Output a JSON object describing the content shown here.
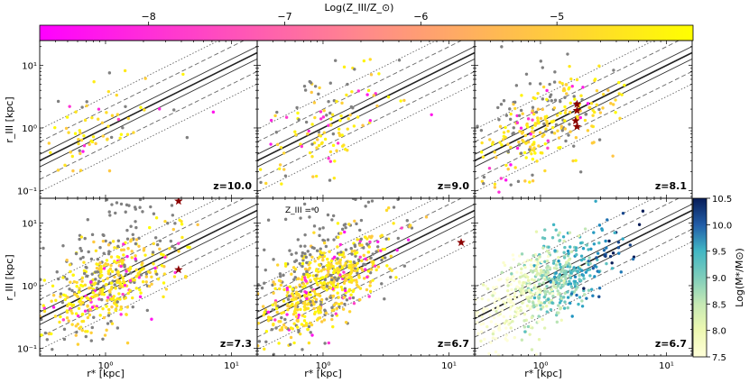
{
  "colorbar_top": {
    "label": "Log(Z_III/Z_⊙)",
    "label_main": "Log(",
    "label_z": "Z",
    "label_sub": "III",
    "label_mid": "/",
    "label_sun": "⊙",
    "label_end": ")",
    "min": -8.8,
    "max": -4.0,
    "ticks": [
      -8,
      -7,
      -6,
      -5
    ],
    "tick_labels": [
      "−8",
      "−7",
      "−6",
      "−5"
    ],
    "colors": [
      "#ff00ff",
      "#ff8a8a",
      "#ffff00"
    ]
  },
  "colorbar_right": {
    "label": "Log(M*/M⊙)",
    "min": 7.5,
    "max": 10.5,
    "ticks": [
      7.5,
      8.0,
      8.5,
      9.0,
      9.5,
      10.0,
      10.5
    ],
    "tick_labels": [
      "7.5",
      "8.0",
      "8.5",
      "9.0",
      "9.5",
      "10.0",
      "10.5"
    ],
    "colors": [
      "#ffffd9",
      "#c7e9b4",
      "#7fcdbb",
      "#41b6c4",
      "#1d91c0",
      "#225ea8",
      "#081d58"
    ]
  },
  "axes": {
    "xlabel": "r* [kpc]",
    "ylabel": "r_III [kpc]",
    "x_ticks": [
      1,
      10
    ],
    "x_tick_labels": [
      "10⁰",
      "10¹"
    ],
    "y_ticks": [
      0.1,
      1,
      10
    ],
    "y_tick_labels": [
      "10⁻¹",
      "10⁰",
      "10¹"
    ]
  },
  "annotation_z0": "Z_III = 0",
  "chart_data": [
    {
      "type": "scatter",
      "panel": 1,
      "title": "z=10.0",
      "xscale": "log",
      "yscale": "log",
      "xlim": [
        0.3,
        16
      ],
      "ylim": [
        0.075,
        25
      ],
      "n_points": 70,
      "seed": 11,
      "spread": 0.35,
      "grey_fraction": 0.15,
      "stars": []
    },
    {
      "type": "scatter",
      "panel": 2,
      "title": "z=9.0",
      "xscale": "log",
      "yscale": "log",
      "xlim": [
        0.3,
        16
      ],
      "ylim": [
        0.075,
        25
      ],
      "n_points": 140,
      "seed": 23,
      "spread": 0.35,
      "grey_fraction": 0.2,
      "stars": []
    },
    {
      "type": "scatter",
      "panel": 3,
      "title": "z=8.1",
      "xscale": "log",
      "yscale": "log",
      "xlim": [
        0.3,
        16
      ],
      "ylim": [
        0.075,
        25
      ],
      "n_points": 280,
      "seed": 37,
      "spread": 0.33,
      "grey_fraction": 0.3,
      "stars": [
        [
          1.95,
          2.4
        ],
        [
          1.95,
          1.9
        ],
        [
          1.9,
          1.3
        ],
        [
          1.95,
          1.05
        ]
      ]
    },
    {
      "type": "scatter",
      "panel": 4,
      "title": "z=7.3",
      "xscale": "log",
      "yscale": "log",
      "xlim": [
        0.3,
        16
      ],
      "ylim": [
        0.075,
        25
      ],
      "n_points": 520,
      "seed": 41,
      "spread": 0.34,
      "grey_fraction": 0.3,
      "stars": [
        [
          3.8,
          22.5
        ],
        [
          3.8,
          1.8
        ]
      ]
    },
    {
      "type": "scatter",
      "panel": 5,
      "title": "z=6.7",
      "xscale": "log",
      "yscale": "log",
      "xlim": [
        0.3,
        16
      ],
      "ylim": [
        0.075,
        25
      ],
      "n_points": 700,
      "seed": 53,
      "spread": 0.32,
      "grey_fraction": 0.28,
      "stars": [
        [
          12.5,
          4.9
        ]
      ]
    },
    {
      "type": "scatter",
      "panel": 6,
      "title": "z=6.7",
      "xscale": "log",
      "yscale": "log",
      "xlim": [
        0.3,
        16
      ],
      "ylim": [
        0.075,
        25
      ],
      "n_points": 600,
      "seed": 67,
      "spread": 0.32,
      "grey_fraction": 0,
      "stars": [],
      "color_by": "stellar_mass"
    }
  ],
  "relation": {
    "description": "r_III = r* with offset bands",
    "center_offset_dex": 0,
    "bands_dex": [
      0.1,
      0.3,
      0.5
    ]
  }
}
